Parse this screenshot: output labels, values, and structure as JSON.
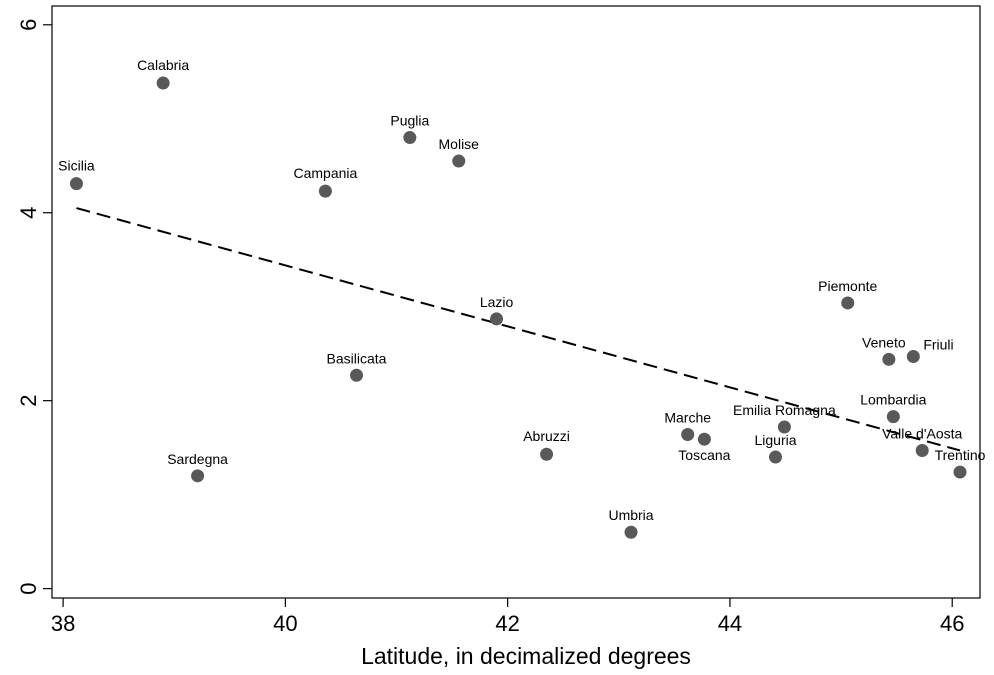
{
  "chart_data": {
    "type": "scatter",
    "title": "",
    "xlabel": "Latitude, in decimalized degrees",
    "ylabel": "",
    "xlim": [
      37.9,
      46.25
    ],
    "ylim": [
      -0.1,
      6.2
    ],
    "xticks": [
      38,
      40,
      42,
      44,
      46
    ],
    "yticks": [
      0,
      2,
      4,
      6
    ],
    "grid": false,
    "legend": "none",
    "point_color": "#595959",
    "points": [
      {
        "label": "Sicilia",
        "x": 38.12,
        "y": 4.31
      },
      {
        "label": "Calabria",
        "x": 38.9,
        "y": 5.38
      },
      {
        "label": "Sardegna",
        "x": 39.21,
        "y": 1.2
      },
      {
        "label": "Campania",
        "x": 40.36,
        "y": 4.23
      },
      {
        "label": "Basilicata",
        "x": 40.64,
        "y": 2.27
      },
      {
        "label": "Puglia",
        "x": 41.12,
        "y": 4.8
      },
      {
        "label": "Molise",
        "x": 41.56,
        "y": 4.55
      },
      {
        "label": "Lazio",
        "x": 41.9,
        "y": 2.87
      },
      {
        "label": "Abruzzi",
        "x": 42.35,
        "y": 1.43
      },
      {
        "label": "Umbria",
        "x": 43.11,
        "y": 0.6
      },
      {
        "label": "Marche",
        "x": 43.62,
        "y": 1.64
      },
      {
        "label": "Toscana",
        "x": 43.77,
        "y": 1.59
      },
      {
        "label": "Liguria",
        "x": 44.41,
        "y": 1.4
      },
      {
        "label": "Emilia Romagna",
        "x": 44.49,
        "y": 1.72
      },
      {
        "label": "Piemonte",
        "x": 45.06,
        "y": 3.04
      },
      {
        "label": "Veneto",
        "x": 45.43,
        "y": 2.44
      },
      {
        "label": "Lombardia",
        "x": 45.47,
        "y": 1.83
      },
      {
        "label": "Friuli",
        "x": 45.65,
        "y": 2.47
      },
      {
        "label": "Valle d'Aosta",
        "x": 45.73,
        "y": 1.47
      },
      {
        "label": "Trentino",
        "x": 46.07,
        "y": 1.24
      }
    ],
    "trend_line": {
      "style": "dashed",
      "x": [
        38.12,
        46.07
      ],
      "y": [
        4.05,
        1.47
      ]
    }
  }
}
